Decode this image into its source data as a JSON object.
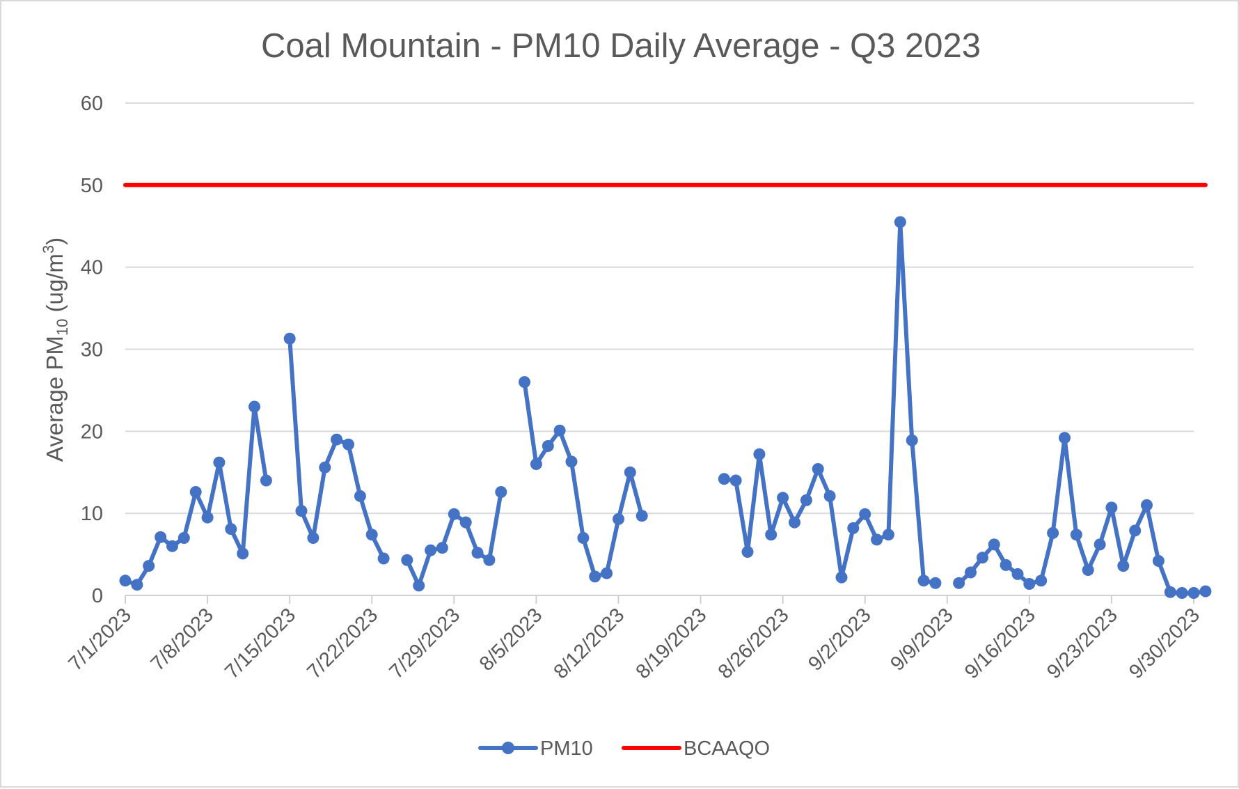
{
  "chart_data": {
    "type": "line",
    "title": "Coal Mountain - PM10 Daily Average - Q3 2023",
    "ylabel": {
      "prefix": "Average PM",
      "subscript": "10",
      "middle": " (ug/m",
      "superscript": "3",
      "suffix": ")"
    },
    "xlabel": "",
    "ylim": [
      0,
      60
    ],
    "yticks": [
      0,
      10,
      20,
      30,
      40,
      50,
      60
    ],
    "xlim": [
      "2023-07-01",
      "2023-09-30"
    ],
    "xticks": [
      {
        "date": "2023-07-01",
        "label": "7/1/2023"
      },
      {
        "date": "2023-07-08",
        "label": "7/8/2023"
      },
      {
        "date": "2023-07-15",
        "label": "7/15/2023"
      },
      {
        "date": "2023-07-22",
        "label": "7/22/2023"
      },
      {
        "date": "2023-07-29",
        "label": "7/29/2023"
      },
      {
        "date": "2023-08-05",
        "label": "8/5/2023"
      },
      {
        "date": "2023-08-12",
        "label": "8/12/2023"
      },
      {
        "date": "2023-08-19",
        "label": "8/19/2023"
      },
      {
        "date": "2023-08-26",
        "label": "8/26/2023"
      },
      {
        "date": "2023-09-02",
        "label": "9/2/2023"
      },
      {
        "date": "2023-09-09",
        "label": "9/9/2023"
      },
      {
        "date": "2023-09-16",
        "label": "9/16/2023"
      },
      {
        "date": "2023-09-23",
        "label": "9/23/2023"
      },
      {
        "date": "2023-09-30",
        "label": "9/30/2023"
      }
    ],
    "grid": "horizontal",
    "legend_position": "bottom",
    "series": [
      {
        "name": "PM10",
        "color": "#4472c4",
        "marker": "circle",
        "points": [
          {
            "x": "2023-07-01",
            "y": 1.8
          },
          {
            "x": "2023-07-02",
            "y": 1.3
          },
          {
            "x": "2023-07-03",
            "y": 3.6
          },
          {
            "x": "2023-07-04",
            "y": 7.1
          },
          {
            "x": "2023-07-05",
            "y": 6.0
          },
          {
            "x": "2023-07-06",
            "y": 7.0
          },
          {
            "x": "2023-07-07",
            "y": 12.6
          },
          {
            "x": "2023-07-08",
            "y": 9.5
          },
          {
            "x": "2023-07-09",
            "y": 16.2
          },
          {
            "x": "2023-07-10",
            "y": 8.1
          },
          {
            "x": "2023-07-11",
            "y": 5.1
          },
          {
            "x": "2023-07-12",
            "y": 23.0
          },
          {
            "x": "2023-07-13",
            "y": 14.0
          },
          {
            "x": "2023-07-14",
            "y": null
          },
          {
            "x": "2023-07-15",
            "y": 31.3
          },
          {
            "x": "2023-07-16",
            "y": 10.3
          },
          {
            "x": "2023-07-17",
            "y": 7.0
          },
          {
            "x": "2023-07-18",
            "y": 15.6
          },
          {
            "x": "2023-07-19",
            "y": 19.0
          },
          {
            "x": "2023-07-20",
            "y": 18.4
          },
          {
            "x": "2023-07-21",
            "y": 12.1
          },
          {
            "x": "2023-07-22",
            "y": 7.4
          },
          {
            "x": "2023-07-23",
            "y": 4.5
          },
          {
            "x": "2023-07-24",
            "y": null
          },
          {
            "x": "2023-07-25",
            "y": 4.3
          },
          {
            "x": "2023-07-26",
            "y": 1.2
          },
          {
            "x": "2023-07-27",
            "y": 5.5
          },
          {
            "x": "2023-07-28",
            "y": 5.8
          },
          {
            "x": "2023-07-29",
            "y": 9.9
          },
          {
            "x": "2023-07-30",
            "y": 8.9
          },
          {
            "x": "2023-07-31",
            "y": 5.2
          },
          {
            "x": "2023-08-01",
            "y": 4.3
          },
          {
            "x": "2023-08-02",
            "y": 12.6
          },
          {
            "x": "2023-08-03",
            "y": null
          },
          {
            "x": "2023-08-04",
            "y": 26.0
          },
          {
            "x": "2023-08-05",
            "y": 16.0
          },
          {
            "x": "2023-08-06",
            "y": 18.2
          },
          {
            "x": "2023-08-07",
            "y": 20.1
          },
          {
            "x": "2023-08-08",
            "y": 16.3
          },
          {
            "x": "2023-08-09",
            "y": 7.0
          },
          {
            "x": "2023-08-10",
            "y": 2.3
          },
          {
            "x": "2023-08-11",
            "y": 2.7
          },
          {
            "x": "2023-08-12",
            "y": 9.3
          },
          {
            "x": "2023-08-13",
            "y": 15.0
          },
          {
            "x": "2023-08-14",
            "y": 9.7
          },
          {
            "x": "2023-08-15",
            "y": null
          },
          {
            "x": "2023-08-16",
            "y": null
          },
          {
            "x": "2023-08-17",
            "y": null
          },
          {
            "x": "2023-08-18",
            "y": null
          },
          {
            "x": "2023-08-19",
            "y": null
          },
          {
            "x": "2023-08-20",
            "y": null
          },
          {
            "x": "2023-08-21",
            "y": 14.2
          },
          {
            "x": "2023-08-22",
            "y": 14.0
          },
          {
            "x": "2023-08-23",
            "y": 5.3
          },
          {
            "x": "2023-08-24",
            "y": 17.2
          },
          {
            "x": "2023-08-25",
            "y": 7.4
          },
          {
            "x": "2023-08-26",
            "y": 11.9
          },
          {
            "x": "2023-08-27",
            "y": 8.9
          },
          {
            "x": "2023-08-28",
            "y": 11.6
          },
          {
            "x": "2023-08-29",
            "y": 15.4
          },
          {
            "x": "2023-08-30",
            "y": 12.1
          },
          {
            "x": "2023-08-31",
            "y": 2.2
          },
          {
            "x": "2023-09-01",
            "y": 8.2
          },
          {
            "x": "2023-09-02",
            "y": 9.9
          },
          {
            "x": "2023-09-03",
            "y": 6.8
          },
          {
            "x": "2023-09-04",
            "y": 7.4
          },
          {
            "x": "2023-09-05",
            "y": 45.5
          },
          {
            "x": "2023-09-06",
            "y": 18.9
          },
          {
            "x": "2023-09-07",
            "y": 1.8
          },
          {
            "x": "2023-09-08",
            "y": 1.5
          },
          {
            "x": "2023-09-09",
            "y": null
          },
          {
            "x": "2023-09-10",
            "y": 1.5
          },
          {
            "x": "2023-09-11",
            "y": 2.8
          },
          {
            "x": "2023-09-12",
            "y": 4.6
          },
          {
            "x": "2023-09-13",
            "y": 6.2
          },
          {
            "x": "2023-09-14",
            "y": 3.7
          },
          {
            "x": "2023-09-15",
            "y": 2.6
          },
          {
            "x": "2023-09-16",
            "y": 1.4
          },
          {
            "x": "2023-09-17",
            "y": 1.8
          },
          {
            "x": "2023-09-18",
            "y": 7.6
          },
          {
            "x": "2023-09-19",
            "y": 19.2
          },
          {
            "x": "2023-09-20",
            "y": 7.4
          },
          {
            "x": "2023-09-21",
            "y": 3.1
          },
          {
            "x": "2023-09-22",
            "y": 6.2
          },
          {
            "x": "2023-09-23",
            "y": 10.7
          },
          {
            "x": "2023-09-24",
            "y": 3.6
          },
          {
            "x": "2023-09-25",
            "y": 7.9
          },
          {
            "x": "2023-09-26",
            "y": 11.0
          },
          {
            "x": "2023-09-27",
            "y": 4.2
          },
          {
            "x": "2023-09-28",
            "y": 0.4
          },
          {
            "x": "2023-09-29",
            "y": 0.3
          },
          {
            "x": "2023-09-30",
            "y": 0.3
          },
          {
            "x": "2023-10-01",
            "y": 0.5
          }
        ]
      },
      {
        "name": "BCAAQO",
        "color": "#ff0000",
        "marker": "none",
        "points": [
          {
            "x": "2023-07-01",
            "y": 50
          },
          {
            "x": "2023-10-01",
            "y": 50
          }
        ]
      }
    ]
  }
}
